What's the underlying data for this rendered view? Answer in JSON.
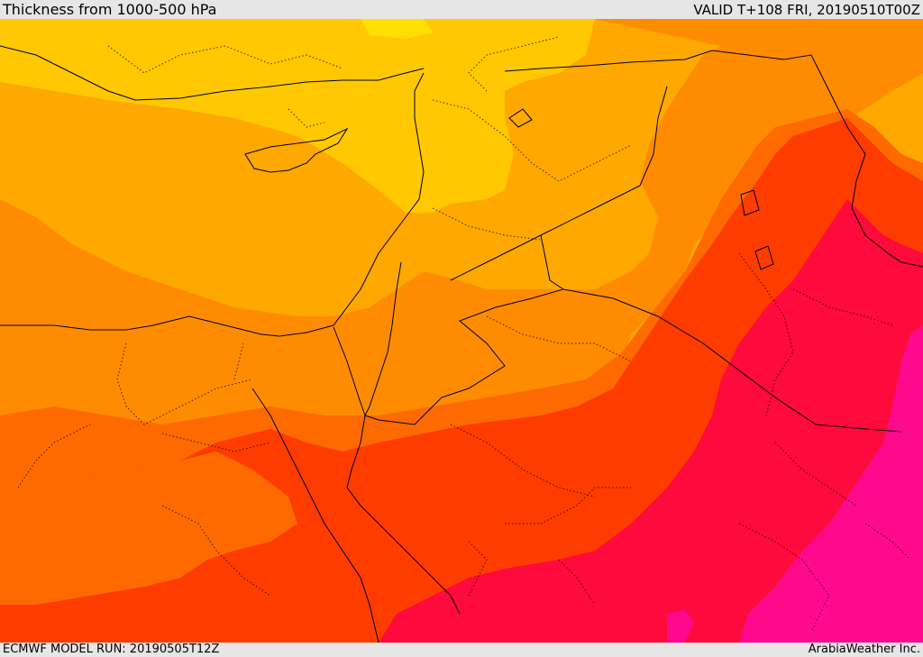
{
  "header": {
    "title": "Thickness from 1000-500 hPa",
    "valid": "VALID T+108 FRI, 20190510T00Z"
  },
  "footer": {
    "model_run": "ECMWF MODEL RUN: 20190505T12Z",
    "credit": "ArabiaWeather Inc."
  },
  "palette": {
    "yellow_light": "#ffe000",
    "yellow": "#ffc800",
    "amber": "#ffa800",
    "orange": "#ff8c00",
    "orange_dark": "#ff6a00",
    "red_orange": "#ff3c00",
    "crimson": "#ff0a3c",
    "magenta": "#ff0a8c",
    "border_line": "#000000"
  },
  "icons": {
    "land_borders": "dotted-border-lines",
    "country_borders": "solid-border-lines"
  }
}
